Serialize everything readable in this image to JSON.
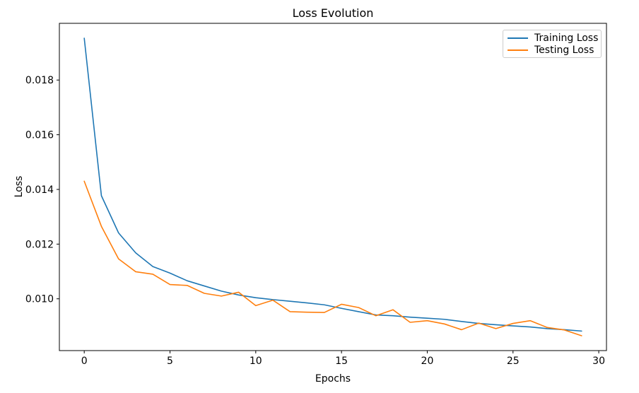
{
  "chart_data": {
    "type": "line",
    "title": "Loss Evolution",
    "xlabel": "Epochs",
    "ylabel": "Loss",
    "x": [
      0,
      1,
      2,
      3,
      4,
      5,
      6,
      7,
      8,
      9,
      10,
      11,
      12,
      13,
      14,
      15,
      16,
      17,
      18,
      19,
      20,
      21,
      22,
      23,
      24,
      25,
      26,
      27,
      28,
      29
    ],
    "series": [
      {
        "name": "Training Loss",
        "color": "#1f77b4",
        "values": [
          0.01953,
          0.01377,
          0.01241,
          0.01168,
          0.01118,
          0.01094,
          0.01066,
          0.01047,
          0.01028,
          0.01014,
          0.01004,
          0.00997,
          0.00991,
          0.00985,
          0.00978,
          0.00965,
          0.00953,
          0.00941,
          0.00938,
          0.00933,
          0.00929,
          0.00925,
          0.00917,
          0.0091,
          0.00905,
          0.00901,
          0.00897,
          0.00891,
          0.00887,
          0.00882
        ]
      },
      {
        "name": "Testing Loss",
        "color": "#ff7f0e",
        "values": [
          0.0143,
          0.01265,
          0.01146,
          0.01099,
          0.0109,
          0.01052,
          0.01049,
          0.0102,
          0.0101,
          0.01024,
          0.00975,
          0.00995,
          0.00953,
          0.00951,
          0.0095,
          0.0098,
          0.00968,
          0.00938,
          0.0096,
          0.00914,
          0.0092,
          0.00908,
          0.00887,
          0.00911,
          0.00891,
          0.0091,
          0.0092,
          0.00895,
          0.00886,
          0.00865
        ]
      }
    ],
    "xlim": [
      -1.45,
      30.45
    ],
    "ylim": [
      0.008106,
      0.020074
    ],
    "xticks": [
      0,
      5,
      10,
      15,
      20,
      25,
      30
    ],
    "yticks": [
      0.01,
      0.012,
      0.014,
      0.016,
      0.018
    ],
    "legend_position": "upper right",
    "grid": false,
    "axis_color": "#000000",
    "background_color": "#ffffff"
  }
}
